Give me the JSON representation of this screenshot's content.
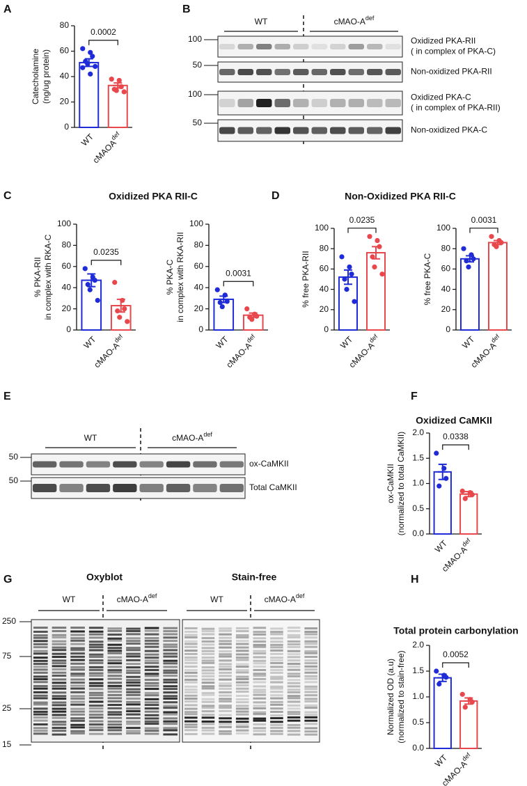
{
  "panel_labels": [
    "A",
    "B",
    "C",
    "D",
    "E",
    "F",
    "G",
    "H"
  ],
  "chart_data": [
    {
      "type": "bar",
      "ylabel": [
        "Catecholamine",
        "(ng/ug protein)"
      ],
      "categories": [
        {
          "label": "WT"
        },
        {
          "label": "cMAOA",
          "sup": "def"
        }
      ],
      "values": [
        51,
        33
      ],
      "errors": [
        3,
        2
      ],
      "points": [
        [
          62,
          59,
          56,
          52,
          50,
          48,
          47,
          42
        ],
        [
          38,
          37,
          32,
          30,
          29,
          28
        ]
      ],
      "colors": [
        "#1f2bd6",
        "#e8474c"
      ],
      "ylim": [
        0,
        80
      ],
      "yticks": [
        0,
        20,
        40,
        60,
        80
      ],
      "comparison": "0.0002"
    },
    {
      "type": "bar",
      "title": "Oxidized PKA RII-C",
      "ylabel": [
        "% PKA-RII",
        "in complex with RKA-C"
      ],
      "categories": [
        {
          "label": "WT"
        },
        {
          "label": "cMAO-A",
          "sup": "def"
        }
      ],
      "values": [
        47,
        23
      ],
      "errors": [
        6,
        6
      ],
      "points": [
        [
          58,
          50,
          47,
          43,
          38,
          28
        ],
        [
          45,
          28,
          20,
          18,
          12,
          8
        ]
      ],
      "colors": [
        "#1f2bd6",
        "#e8474c"
      ],
      "ylim": [
        0,
        100
      ],
      "yticks": [
        0,
        20,
        40,
        60,
        80,
        100
      ],
      "comparison": "0.0235"
    },
    {
      "type": "bar",
      "ylabel": [
        "% PKA-C",
        "in complex with RKA-RII"
      ],
      "categories": [
        {
          "label": "WT"
        },
        {
          "label": "cMAO-A",
          "sup": "def"
        }
      ],
      "values": [
        29,
        14
      ],
      "errors": [
        3,
        2
      ],
      "points": [
        [
          38,
          33,
          27,
          26,
          22
        ],
        [
          20,
          15,
          13,
          12,
          10
        ]
      ],
      "colors": [
        "#1f2bd6",
        "#e8474c"
      ],
      "ylim": [
        0,
        100
      ],
      "yticks": [
        0,
        20,
        40,
        60,
        80,
        100
      ],
      "comparison": "0.0031"
    },
    {
      "type": "bar",
      "title": "Non-Oxidized PKA RII-C",
      "ylabel": [
        "% free PKA-RII"
      ],
      "categories": [
        {
          "label": "WT"
        },
        {
          "label": "cMAO-A",
          "sup": "def"
        }
      ],
      "values": [
        52,
        76
      ],
      "errors": [
        7,
        6
      ],
      "points": [
        [
          72,
          62,
          55,
          50,
          40,
          28
        ],
        [
          92,
          88,
          82,
          72,
          62,
          55
        ]
      ],
      "colors": [
        "#1f2bd6",
        "#e8474c"
      ],
      "ylim": [
        0,
        100
      ],
      "yticks": [
        0,
        20,
        40,
        60,
        80,
        100
      ],
      "comparison": "0.0235"
    },
    {
      "type": "bar",
      "ylabel": [
        "% free PKA-C"
      ],
      "categories": [
        {
          "label": "WT"
        },
        {
          "label": "cMAO-A",
          "sup": "def"
        }
      ],
      "values": [
        70,
        86
      ],
      "errors": [
        3,
        2
      ],
      "points": [
        [
          80,
          74,
          70,
          68,
          62
        ],
        [
          92,
          88,
          86,
          84,
          82
        ]
      ],
      "colors": [
        "#1f2bd6",
        "#e8474c"
      ],
      "ylim": [
        0,
        100
      ],
      "yticks": [
        0,
        20,
        40,
        60,
        80,
        100
      ],
      "comparison": "0.0031"
    },
    {
      "type": "bar",
      "title": "Oxidized CaMKII",
      "ylabel": [
        "ox-CaMKII",
        "(normalized to total CaMKII)"
      ],
      "categories": [
        {
          "label": "WT"
        },
        {
          "label": "cMAO-A",
          "sup": "def"
        }
      ],
      "values": [
        1.23,
        0.79
      ],
      "errors": [
        0.15,
        0.05
      ],
      "points": [
        [
          1.6,
          1.3,
          1.1,
          0.95
        ],
        [
          0.85,
          0.82,
          0.78,
          0.7
        ]
      ],
      "colors": [
        "#1f2bd6",
        "#e8474c"
      ],
      "ylim": [
        0,
        2
      ],
      "yticks": [
        {
          "value": 0,
          "label": "0.0"
        },
        0.5,
        {
          "value": 1,
          "label": "1.0"
        },
        1.5,
        {
          "value": 2,
          "label": "2.0"
        }
      ],
      "comparison": "0.0338"
    },
    {
      "type": "bar",
      "title": "Total protein carbonylation",
      "ylabel": [
        "Normalized OD (a.u)",
        "(normalized to stain-free)"
      ],
      "categories": [
        {
          "label": "WT"
        },
        {
          "label": "cMAO-A",
          "sup": "def"
        }
      ],
      "values": [
        1.37,
        0.92
      ],
      "errors": [
        0.07,
        0.06
      ],
      "points": [
        [
          1.5,
          1.42,
          1.38,
          1.25
        ],
        [
          1.05,
          0.95,
          0.9,
          0.8
        ]
      ],
      "colors": [
        "#1f2bd6",
        "#e8474c"
      ],
      "ylim": [
        0,
        2
      ],
      "yticks": [
        {
          "value": 0,
          "label": "0.0"
        },
        0.5,
        {
          "value": 1,
          "label": "1.0"
        },
        1.5,
        {
          "value": 2,
          "label": "2.0"
        }
      ],
      "comparison": "0.0052"
    }
  ],
  "panel_B": {
    "groups": [
      {
        "label": "WT"
      },
      {
        "label": "cMAO-A",
        "sup": "def"
      }
    ],
    "rows": [
      {
        "marker": 100,
        "label": [
          "Oxidized PKA-RII",
          "( in complex of PKA-C)"
        ]
      },
      {
        "marker": 50,
        "label": [
          "Non-oxidized PKA-RII"
        ]
      },
      {
        "marker": 100,
        "label": [
          "Oxidized PKA-C",
          "( in complex of PKA-RII)"
        ]
      },
      {
        "marker": 50,
        "label": [
          "Non-oxidized PKA-C"
        ]
      }
    ]
  },
  "panel_E": {
    "groups": [
      {
        "label": "WT"
      },
      {
        "label": "cMAO-A",
        "sup": "def"
      }
    ],
    "rows": [
      {
        "marker": 50,
        "label": [
          "ox-CaMKII"
        ]
      },
      {
        "marker": 50,
        "label": [
          "Total CaMKII"
        ]
      }
    ]
  },
  "panel_G": {
    "blots": [
      {
        "title": "Oxyblot",
        "groups": [
          {
            "label": "WT"
          },
          {
            "label": "cMAO-A",
            "sup": "def"
          }
        ]
      },
      {
        "title": "Stain-free",
        "groups": [
          {
            "label": "WT"
          },
          {
            "label": "cMAO-A",
            "sup": "def"
          }
        ]
      }
    ],
    "markers": [
      250,
      75,
      25,
      15
    ]
  }
}
